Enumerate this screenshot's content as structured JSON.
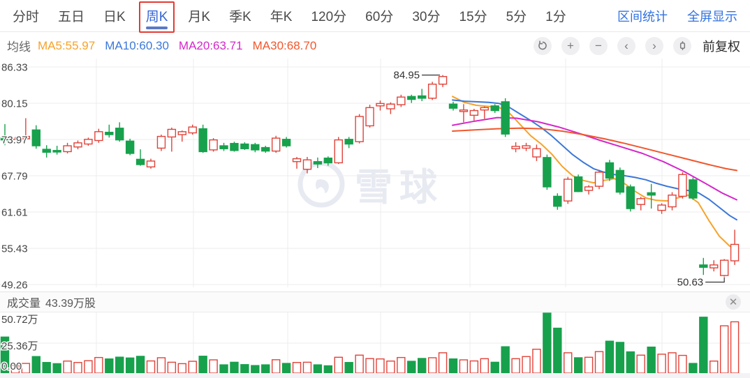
{
  "header": {
    "tabs": [
      {
        "label": "分时",
        "active": false
      },
      {
        "label": "五日",
        "active": false
      },
      {
        "label": "日K",
        "active": false
      },
      {
        "label": "周K",
        "active": true
      },
      {
        "label": "月K",
        "active": false
      },
      {
        "label": "季K",
        "active": false
      },
      {
        "label": "年K",
        "active": false
      },
      {
        "label": "120分",
        "active": false
      },
      {
        "label": "60分",
        "active": false
      },
      {
        "label": "30分",
        "active": false
      },
      {
        "label": "15分",
        "active": false
      },
      {
        "label": "5分",
        "active": false
      },
      {
        "label": "1分",
        "active": false
      }
    ],
    "links": [
      "区间统计",
      "全屏显示"
    ]
  },
  "toolbar": {
    "ma_title": "均线",
    "ma_items": [
      {
        "name": "ma5",
        "label": "MA5:55.97",
        "color": "#f7a229"
      },
      {
        "name": "ma10",
        "label": "MA10:60.30",
        "color": "#3c78d8"
      },
      {
        "name": "ma20",
        "label": "MA20:63.71",
        "color": "#d428c9"
      },
      {
        "name": "ma30",
        "label": "MA30:68.70",
        "color": "#f0572d"
      }
    ],
    "buttons": [
      {
        "name": "undo",
        "glyph": "undo"
      },
      {
        "name": "zoom-in",
        "glyph": "+"
      },
      {
        "name": "zoom-out",
        "glyph": "−"
      },
      {
        "name": "pan-left",
        "glyph": "‹"
      },
      {
        "name": "pan-right",
        "glyph": "›"
      },
      {
        "name": "candle-style",
        "glyph": "candle"
      }
    ],
    "adjust_label": "前复权"
  },
  "watermark": {
    "text": "雪球"
  },
  "chart_data": {
    "type": "candlestick",
    "title": "周K (weekly K-line) with volume sub-chart",
    "y_ticks": [
      86.33,
      80.15,
      73.97,
      67.79,
      61.61,
      55.43,
      49.26
    ],
    "x_gridlines": [
      138,
      277,
      412,
      545,
      673,
      810,
      948
    ],
    "ylim": [
      49.26,
      86.33
    ],
    "annotations": [
      {
        "text": "84.95",
        "candle_index": 42,
        "position": "high"
      },
      {
        "text": "50.63",
        "candle_index": 69,
        "position": "low"
      }
    ],
    "colors": {
      "up": "#e0433a",
      "down": "#17a14c",
      "grid": "#ececec",
      "axis_text": "#444",
      "annotation": "#333",
      "watermark": "#e8eaf2"
    },
    "candles": [
      [
        74.3,
        76.6,
        73.0,
        73.9
      ],
      [
        73.6,
        74.4,
        73.2,
        74.0
      ],
      [
        74.1,
        77.6,
        73.8,
        74.5
      ],
      [
        75.6,
        76.4,
        72.4,
        72.9
      ],
      [
        72.3,
        73.0,
        70.9,
        71.8
      ],
      [
        72.1,
        72.9,
        71.4,
        71.9
      ],
      [
        71.9,
        73.4,
        71.6,
        72.9
      ],
      [
        72.7,
        73.8,
        72.3,
        73.4
      ],
      [
        73.2,
        74.3,
        72.9,
        74.0
      ],
      [
        73.8,
        75.8,
        73.4,
        75.3
      ],
      [
        75.2,
        76.5,
        74.3,
        74.8
      ],
      [
        75.9,
        76.9,
        73.6,
        73.9
      ],
      [
        73.7,
        74.1,
        71.3,
        71.6
      ],
      [
        70.6,
        72.3,
        69.5,
        69.7
      ],
      [
        69.3,
        70.7,
        69.0,
        70.3
      ],
      [
        72.5,
        74.8,
        72.0,
        74.5
      ],
      [
        74.4,
        76.0,
        71.9,
        75.7
      ],
      [
        74.8,
        75.5,
        73.6,
        75.3
      ],
      [
        75.1,
        76.5,
        74.8,
        76.1
      ],
      [
        75.8,
        76.5,
        71.7,
        71.9
      ],
      [
        72.2,
        74.2,
        71.9,
        73.9
      ],
      [
        72.9,
        73.4,
        72.0,
        72.4
      ],
      [
        73.3,
        73.6,
        71.9,
        72.1
      ],
      [
        73.2,
        73.5,
        72.2,
        72.4
      ],
      [
        73.1,
        73.4,
        71.8,
        72.2
      ],
      [
        72.6,
        72.9,
        71.7,
        72.0
      ],
      [
        72.0,
        74.6,
        71.7,
        74.2
      ],
      [
        74.0,
        74.4,
        72.6,
        72.9
      ],
      [
        70.2,
        71.0,
        69.0,
        70.7
      ],
      [
        68.9,
        71.0,
        68.2,
        70.5
      ],
      [
        70.2,
        70.9,
        69.1,
        69.8
      ],
      [
        70.8,
        71.1,
        69.5,
        70.0
      ],
      [
        70.0,
        74.4,
        69.8,
        73.9
      ],
      [
        74.0,
        74.4,
        72.5,
        73.2
      ],
      [
        73.6,
        78.3,
        73.3,
        77.9
      ],
      [
        76.3,
        79.9,
        76.0,
        79.4
      ],
      [
        79.7,
        80.6,
        78.9,
        80.1
      ],
      [
        79.2,
        80.3,
        78.3,
        80.0
      ],
      [
        79.9,
        81.6,
        79.5,
        81.2
      ],
      [
        81.3,
        81.6,
        80.2,
        80.8
      ],
      [
        81.4,
        82.6,
        80.5,
        81.0
      ],
      [
        81.0,
        83.8,
        80.7,
        83.4
      ],
      [
        83.4,
        84.95,
        82.9,
        84.7
      ],
      [
        80.0,
        80.4,
        78.9,
        79.3
      ],
      [
        78.8,
        80.0,
        76.9,
        79.0
      ],
      [
        78.1,
        79.2,
        77.2,
        78.9
      ],
      [
        79.0,
        79.6,
        77.5,
        79.4
      ],
      [
        79.7,
        80.0,
        78.5,
        78.9
      ],
      [
        80.4,
        81.0,
        74.4,
        74.9
      ],
      [
        72.4,
        73.5,
        71.8,
        72.8
      ],
      [
        72.5,
        73.4,
        72.0,
        72.9
      ],
      [
        71.0,
        73.1,
        70.3,
        72.4
      ],
      [
        70.9,
        71.4,
        65.4,
        65.9
      ],
      [
        64.3,
        64.8,
        62.0,
        62.6
      ],
      [
        63.5,
        67.6,
        63.0,
        67.2
      ],
      [
        67.6,
        68.0,
        65.0,
        65.1
      ],
      [
        65.3,
        66.2,
        64.6,
        65.9
      ],
      [
        66.0,
        68.8,
        65.5,
        68.4
      ],
      [
        70.0,
        70.5,
        66.9,
        67.4
      ],
      [
        68.7,
        69.2,
        64.6,
        65.0
      ],
      [
        65.9,
        66.3,
        61.7,
        62.2
      ],
      [
        62.9,
        64.2,
        61.9,
        63.9
      ],
      [
        64.9,
        66.4,
        62.2,
        64.5
      ],
      [
        61.9,
        63.1,
        61.3,
        62.8
      ],
      [
        62.5,
        65.0,
        61.9,
        64.5
      ],
      [
        64.3,
        68.4,
        63.9,
        68.0
      ],
      [
        67.1,
        67.5,
        63.7,
        64.0
      ],
      [
        52.6,
        53.8,
        50.9,
        52.2
      ],
      [
        52.1,
        53.4,
        51.5,
        52.6
      ],
      [
        50.8,
        53.6,
        50.63,
        53.4
      ],
      [
        53.3,
        58.6,
        52.6,
        56.1
      ]
    ],
    "ma_series": [
      {
        "name": "MA5",
        "color": "#f7a229",
        "points": [
          [
            648,
            81.3
          ],
          [
            665,
            80.3
          ],
          [
            682,
            79.8
          ],
          [
            700,
            79.6
          ],
          [
            715,
            79.4
          ],
          [
            730,
            78.4
          ],
          [
            745,
            76.5
          ],
          [
            760,
            74.6
          ],
          [
            775,
            73.2
          ],
          [
            790,
            71.5
          ],
          [
            805,
            69.4
          ],
          [
            820,
            67.8
          ],
          [
            835,
            67.0
          ],
          [
            850,
            66.6
          ],
          [
            865,
            67.0
          ],
          [
            880,
            67.3
          ],
          [
            895,
            66.4
          ],
          [
            910,
            65.1
          ],
          [
            925,
            64.0
          ],
          [
            940,
            63.6
          ],
          [
            955,
            63.5
          ],
          [
            970,
            64.0
          ],
          [
            985,
            64.5
          ],
          [
            1000,
            63.2
          ],
          [
            1015,
            60.2
          ],
          [
            1030,
            57.5
          ],
          [
            1045,
            55.8
          ],
          [
            1055,
            55.3
          ]
        ]
      },
      {
        "name": "MA10",
        "color": "#3c78d8",
        "points": [
          [
            648,
            80.7
          ],
          [
            665,
            80.5
          ],
          [
            682,
            80.4
          ],
          [
            700,
            80.3
          ],
          [
            715,
            80.1
          ],
          [
            730,
            79.4
          ],
          [
            745,
            78.3
          ],
          [
            760,
            77.2
          ],
          [
            775,
            76.0
          ],
          [
            790,
            74.6
          ],
          [
            805,
            73.0
          ],
          [
            820,
            71.4
          ],
          [
            835,
            70.1
          ],
          [
            850,
            69.0
          ],
          [
            865,
            68.4
          ],
          [
            880,
            68.0
          ],
          [
            895,
            67.8
          ],
          [
            910,
            67.5
          ],
          [
            925,
            67.1
          ],
          [
            940,
            66.5
          ],
          [
            955,
            66.0
          ],
          [
            970,
            65.6
          ],
          [
            985,
            65.3
          ],
          [
            1000,
            64.9
          ],
          [
            1015,
            63.8
          ],
          [
            1030,
            62.4
          ],
          [
            1045,
            61.0
          ],
          [
            1055,
            60.3
          ]
        ]
      },
      {
        "name": "MA20",
        "color": "#d428c9",
        "points": [
          [
            648,
            76.4
          ],
          [
            680,
            77.1
          ],
          [
            712,
            77.7
          ],
          [
            740,
            77.6
          ],
          [
            770,
            77.0
          ],
          [
            800,
            76.1
          ],
          [
            830,
            75.0
          ],
          [
            860,
            73.8
          ],
          [
            890,
            72.7
          ],
          [
            920,
            71.6
          ],
          [
            950,
            70.2
          ],
          [
            980,
            68.5
          ],
          [
            1010,
            66.5
          ],
          [
            1035,
            64.8
          ],
          [
            1055,
            63.7
          ]
        ]
      },
      {
        "name": "MA30",
        "color": "#f0572d",
        "points": [
          [
            648,
            75.4
          ],
          [
            680,
            75.6
          ],
          [
            712,
            75.8
          ],
          [
            745,
            75.9
          ],
          [
            775,
            75.8
          ],
          [
            805,
            75.4
          ],
          [
            835,
            74.8
          ],
          [
            865,
            74.1
          ],
          [
            895,
            73.3
          ],
          [
            925,
            72.4
          ],
          [
            955,
            71.5
          ],
          [
            985,
            70.6
          ],
          [
            1015,
            69.7
          ],
          [
            1040,
            69.0
          ],
          [
            1055,
            68.7
          ]
        ]
      }
    ],
    "volume": {
      "title": "成交量",
      "value": "43.39万股",
      "y_tick_labels": [
        "50.72万",
        "25.36万",
        "0.00"
      ],
      "y_tick_values": [
        50.72,
        25.36,
        0
      ],
      "max": 50.72,
      "bars": [
        30.5,
        6.5,
        8.2,
        14.0,
        9.0,
        8.0,
        10.2,
        9.0,
        10.5,
        13.2,
        12.0,
        13.5,
        12.8,
        14.2,
        10.3,
        13.0,
        9.2,
        8.0,
        10.0,
        14.3,
        11.2,
        7.0,
        9.2,
        7.2,
        6.4,
        7.0,
        11.3,
        8.2,
        9.0,
        9.2,
        7.0,
        6.2,
        13.4,
        9.0,
        15.2,
        12.3,
        12.0,
        10.2,
        13.2,
        10.0,
        12.4,
        13.0,
        17.2,
        12.0,
        11.2,
        10.3,
        12.2,
        9.2,
        22.3,
        12.2,
        14.0,
        20.2,
        50.72,
        38.0,
        17.2,
        13.0,
        13.4,
        18.2,
        27.0,
        26.0,
        18.0,
        15.2,
        22.0,
        16.0,
        17.2,
        15.0,
        8.2,
        47.3,
        10.2,
        40.0,
        43.39
      ]
    }
  }
}
